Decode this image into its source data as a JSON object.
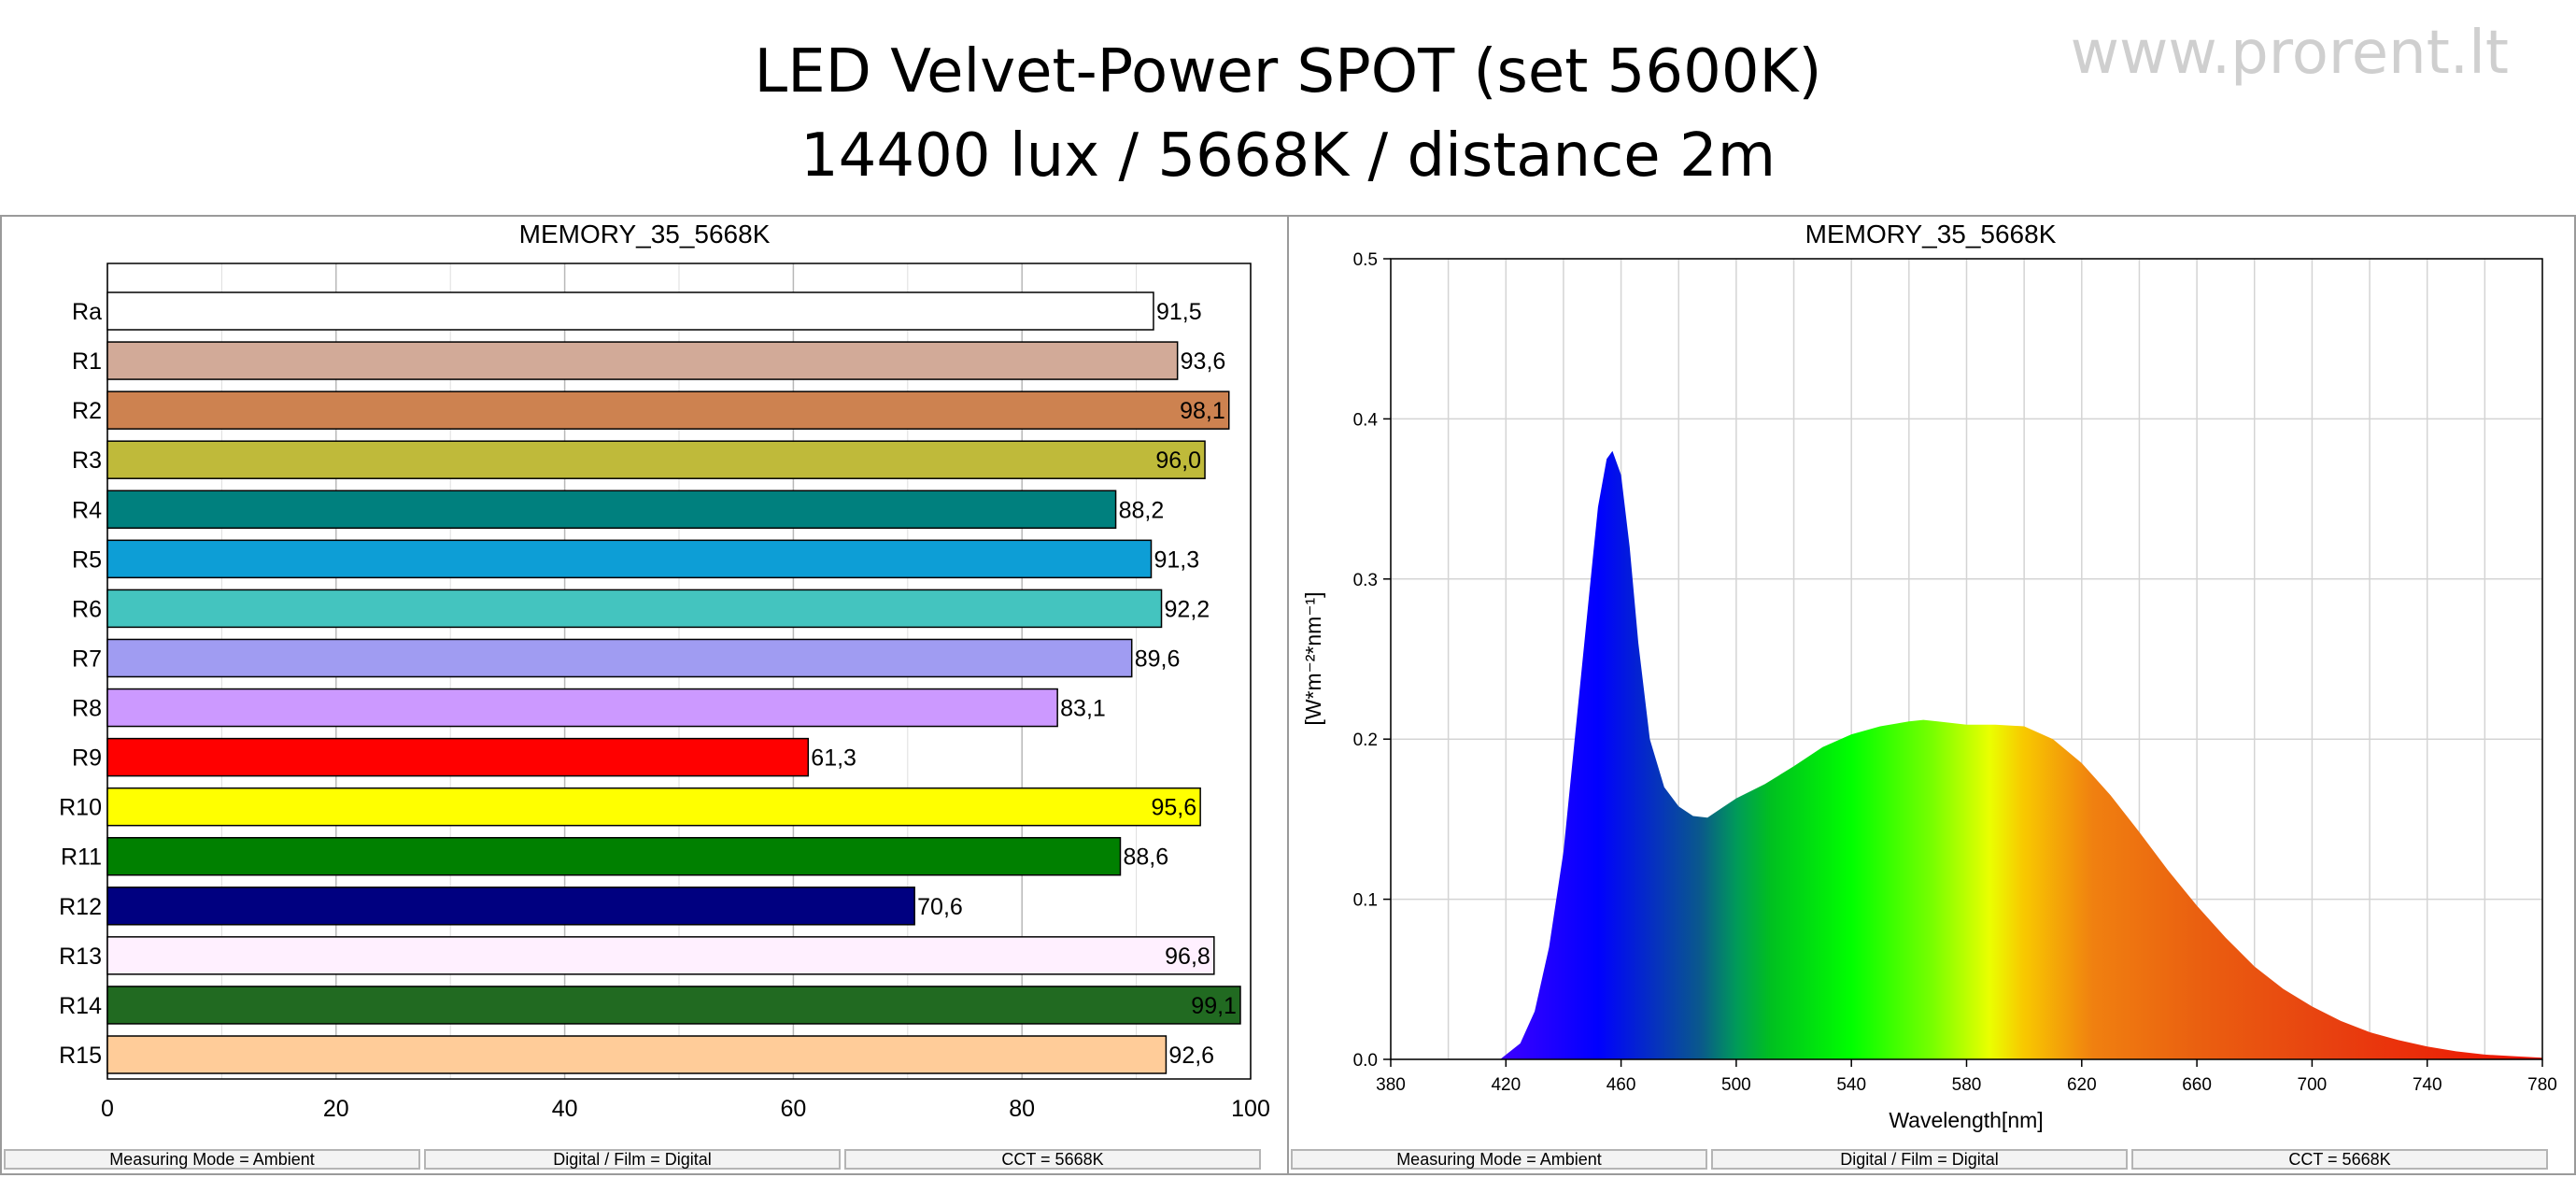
{
  "header": {
    "title_line1": "LED Velvet-Power SPOT (set 5600K)",
    "title_line2": "14400 lux / 5668K / distance 2m",
    "watermark": "www.prorent.lt"
  },
  "chart_data": [
    {
      "type": "bar",
      "orientation": "horizontal",
      "title": "MEMORY_35_5668K",
      "categories": [
        "Ra",
        "R1",
        "R2",
        "R3",
        "R4",
        "R5",
        "R6",
        "R7",
        "R8",
        "R9",
        "R10",
        "R11",
        "R12",
        "R13",
        "R14",
        "R15"
      ],
      "values": [
        91.5,
        93.6,
        98.1,
        96.0,
        88.2,
        91.3,
        92.2,
        89.6,
        83.1,
        61.3,
        95.6,
        88.6,
        70.6,
        96.8,
        99.1,
        92.6
      ],
      "value_labels": [
        "91,5",
        "93,6",
        "98,1",
        "96,0",
        "88,2",
        "91,3",
        "92,2",
        "89,6",
        "83,1",
        "61,3",
        "95,6",
        "88,6",
        "70,6",
        "96,8",
        "99,1",
        "92,6"
      ],
      "label_inside": [
        false,
        false,
        true,
        true,
        false,
        false,
        false,
        false,
        false,
        false,
        true,
        false,
        false,
        true,
        true,
        false
      ],
      "colors": [
        "#ffffff",
        "#d2aa98",
        "#cd8250",
        "#bfba3a",
        "#00807e",
        "#0d9ed6",
        "#44c4bf",
        "#a09cf2",
        "#cc99ff",
        "#ff0000",
        "#ffff00",
        "#008000",
        "#000080",
        "#fff0ff",
        "#216a21",
        "#ffcc99"
      ],
      "xlim": [
        0,
        100
      ],
      "xticks": [
        0,
        20,
        40,
        60,
        80,
        100
      ],
      "grid": true,
      "xlabel": "",
      "ylabel": ""
    },
    {
      "type": "area",
      "title": "MEMORY_35_5668K",
      "xlabel": "Wavelength[nm]",
      "ylabel": "[W*m⁻²*nm⁻¹]",
      "xlim": [
        380,
        780
      ],
      "ylim": [
        0,
        0.5
      ],
      "xticks": [
        380,
        420,
        460,
        500,
        540,
        580,
        620,
        660,
        700,
        740,
        780
      ],
      "yticks": [
        0.0,
        0.1,
        0.2,
        0.3,
        0.4,
        0.5
      ],
      "ytick_labels": [
        "0.0",
        "0.1",
        "0.2",
        "0.3",
        "0.4",
        "0.5"
      ],
      "grid": true,
      "fill": "visible-spectrum colors",
      "x": [
        418,
        425,
        430,
        435,
        440,
        445,
        450,
        452,
        455,
        457,
        460,
        463,
        466,
        470,
        475,
        480,
        485,
        490,
        495,
        500,
        510,
        520,
        530,
        540,
        550,
        560,
        565,
        570,
        580,
        590,
        600,
        610,
        620,
        630,
        640,
        650,
        660,
        670,
        680,
        690,
        700,
        710,
        720,
        730,
        740,
        750,
        760,
        770,
        780
      ],
      "y": [
        0.0,
        0.01,
        0.03,
        0.07,
        0.13,
        0.22,
        0.31,
        0.345,
        0.375,
        0.38,
        0.365,
        0.32,
        0.26,
        0.2,
        0.17,
        0.158,
        0.152,
        0.151,
        0.157,
        0.163,
        0.172,
        0.183,
        0.195,
        0.203,
        0.208,
        0.211,
        0.212,
        0.211,
        0.209,
        0.209,
        0.208,
        0.2,
        0.185,
        0.165,
        0.142,
        0.118,
        0.096,
        0.076,
        0.058,
        0.044,
        0.033,
        0.024,
        0.017,
        0.012,
        0.008,
        0.005,
        0.003,
        0.002,
        0.001
      ]
    }
  ],
  "status_bar": {
    "left": [
      "Measuring Mode = Ambient",
      "Digital / Film = Digital",
      "CCT = 5668K"
    ],
    "right": [
      "Measuring Mode = Ambient",
      "Digital / Film = Digital",
      "CCT = 5668K"
    ]
  }
}
